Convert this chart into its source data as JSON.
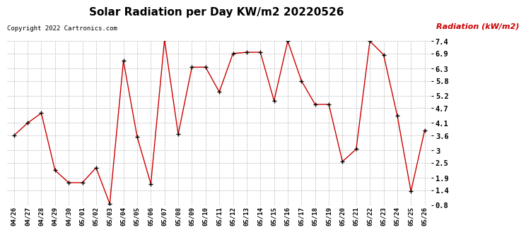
{
  "title": "Solar Radiation per Day KW/m2 20220526",
  "ylabel": "Radiation (kW/m2)",
  "copyright": "Copyright 2022 Cartronics.com",
  "line_color": "#cc0000",
  "marker_color": "#000000",
  "title_color": "#000000",
  "ylabel_color": "#cc0000",
  "copyright_color": "#000000",
  "background_color": "#ffffff",
  "grid_color": "#bbbbbb",
  "ylim": [
    0.8,
    7.4
  ],
  "yticks": [
    0.8,
    1.4,
    1.9,
    2.5,
    3.0,
    3.6,
    4.1,
    4.7,
    5.2,
    5.8,
    6.3,
    6.9,
    7.4
  ],
  "dates": [
    "04/26",
    "04/27",
    "04/28",
    "04/29",
    "04/30",
    "05/01",
    "05/02",
    "05/03",
    "05/04",
    "05/05",
    "05/06",
    "05/07",
    "05/08",
    "05/09",
    "05/10",
    "05/11",
    "05/12",
    "05/13",
    "05/14",
    "05/15",
    "05/16",
    "05/17",
    "05/18",
    "05/19",
    "05/20",
    "05/21",
    "05/22",
    "05/23",
    "05/24",
    "05/25",
    "05/26"
  ],
  "values": [
    3.6,
    4.1,
    4.5,
    2.2,
    1.7,
    1.7,
    2.3,
    0.85,
    6.6,
    3.55,
    1.65,
    7.45,
    3.65,
    6.35,
    6.35,
    5.35,
    6.9,
    6.95,
    6.95,
    5.0,
    7.4,
    5.8,
    4.85,
    4.85,
    2.55,
    3.05,
    7.4,
    6.85,
    4.4,
    1.35,
    3.8
  ]
}
